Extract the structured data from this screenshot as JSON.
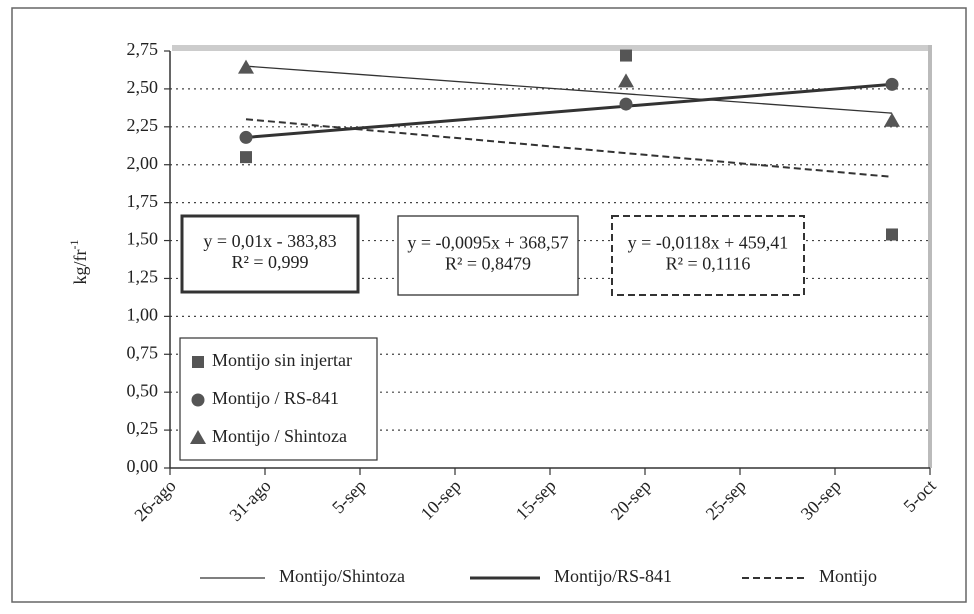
{
  "chart_data": {
    "type": "scatter",
    "y_label": "kg/fr",
    "y_label_exponent": "-1",
    "xlim": [
      238,
      278
    ],
    "xticks": [
      {
        "value": 238,
        "label": "26-ago"
      },
      {
        "value": 243,
        "label": "31-ago"
      },
      {
        "value": 248,
        "label": "5-sep"
      },
      {
        "value": 253,
        "label": "10-sep"
      },
      {
        "value": 258,
        "label": "15-sep"
      },
      {
        "value": 263,
        "label": "20-sep"
      },
      {
        "value": 268,
        "label": "25-sep"
      },
      {
        "value": 273,
        "label": "30-sep"
      },
      {
        "value": 278,
        "label": "5-oct"
      }
    ],
    "ylim": [
      0,
      2.75
    ],
    "yticks": [
      {
        "value": 0,
        "label": "0,00"
      },
      {
        "value": 0.25,
        "label": "0,25"
      },
      {
        "value": 0.5,
        "label": "0,50"
      },
      {
        "value": 0.75,
        "label": "0,75"
      },
      {
        "value": 1,
        "label": "1,00"
      },
      {
        "value": 1.25,
        "label": "1,25"
      },
      {
        "value": 1.5,
        "label": "1,50"
      },
      {
        "value": 1.75,
        "label": "1,75"
      },
      {
        "value": 2,
        "label": "2,00"
      },
      {
        "value": 2.25,
        "label": "2,25"
      },
      {
        "value": 2.5,
        "label": "2,50"
      },
      {
        "value": 2.75,
        "label": "2,75"
      }
    ],
    "grid": true,
    "series": [
      {
        "name": "Montijo sin injertar",
        "marker": "square",
        "color": "#555555",
        "x": [
          242,
          262,
          276
        ],
        "values": [
          2.05,
          2.72,
          1.54
        ]
      },
      {
        "name": "Montijo / RS-841",
        "marker": "circle",
        "color": "#555555",
        "x": [
          242,
          262,
          276
        ],
        "values": [
          2.18,
          2.4,
          2.53
        ]
      },
      {
        "name": "Montijo / Shintoza",
        "marker": "triangle",
        "color": "#555555",
        "x": [
          242,
          262,
          276
        ],
        "values": [
          2.64,
          2.55,
          2.29
        ]
      }
    ],
    "trendlines": [
      {
        "name": "Montijo/Shintoza",
        "style": "thin",
        "x": [
          242,
          276
        ],
        "values": [
          2.65,
          2.34
        ]
      },
      {
        "name": "Montijo/RS-841",
        "style": "thick",
        "x": [
          242,
          276
        ],
        "values": [
          2.18,
          2.53
        ]
      },
      {
        "name": "Montijo",
        "style": "dashed",
        "x": [
          242,
          276
        ],
        "values": [
          2.3,
          1.92
        ]
      }
    ],
    "annotations": [
      {
        "equation": "y = 0,01x - 383,83",
        "r2": "R² = 0,999",
        "style": "thick"
      },
      {
        "equation": "y = -0,0095x + 368,57",
        "r2": "R² = 0,8479",
        "style": "thin"
      },
      {
        "equation": "y = -0,0118x + 459,41",
        "r2": "R² = 0,1116",
        "style": "dashed"
      }
    ]
  }
}
